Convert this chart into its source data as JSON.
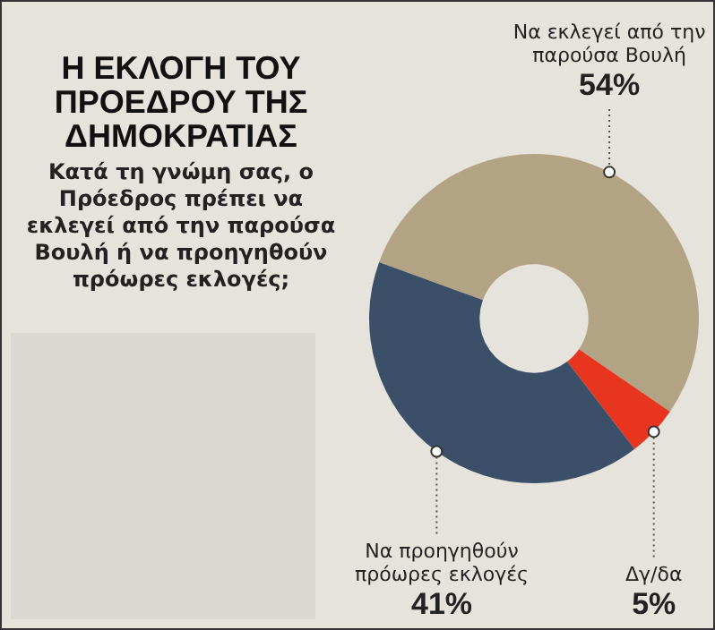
{
  "chart_data": {
    "type": "donut",
    "title": "Η ΕΚΛΟΓΗ ΤΟΥ ΠΡΟΕΔΡΟΥ ΤΗΣ ΔΗΜΟΚΡΑΤΙΑΣ",
    "subtitle": "Κατά τη γνώμη σας, ο Πρόεδρος πρέπει να εκλεγεί από την παρούσα Βουλή ή να προηγηθούν πρόωρες εκλογές;",
    "categories": [
      "Να εκλεγεί από την παρούσα Βουλή",
      "Δγ/δα",
      "Να προηγηθούν πρόωρες εκλογές"
    ],
    "values": [
      54,
      5,
      41
    ],
    "colors": [
      "#b2a384",
      "#e8351f",
      "#3b5068"
    ],
    "value_labels": [
      "54%",
      "5%",
      "41%"
    ],
    "legend": false
  }
}
